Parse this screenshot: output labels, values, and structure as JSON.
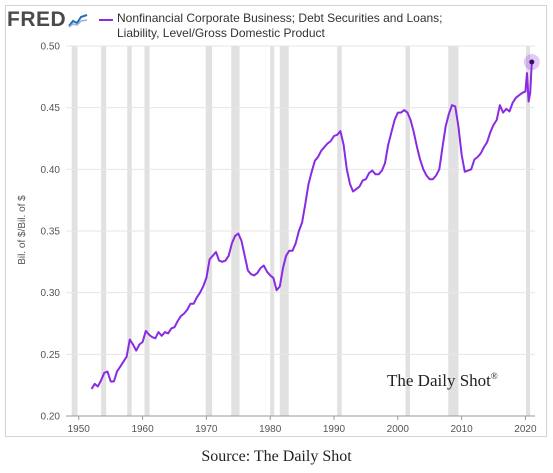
{
  "header": {
    "logo_text": "FRED",
    "legend_label": "Nonfinancial Corporate Business; Debt Securities and Loans; Liability, Level/Gross Domestic Product",
    "legend_color": "#8a2be2"
  },
  "watermark": "The Daily Shot",
  "watermark_mark": "®",
  "source": "Source: The Daily Shot",
  "chart_data": {
    "type": "line",
    "title": "",
    "ylabel": "Bil. of $/Bil. of $",
    "xlabel": "",
    "xlim": [
      1948.0,
      2021.5
    ],
    "ylim": [
      0.2,
      0.5
    ],
    "x_ticks": [
      1950,
      1960,
      1970,
      1980,
      1990,
      2000,
      2010,
      2020
    ],
    "y_ticks": [
      0.2,
      0.25,
      0.3,
      0.35,
      0.4,
      0.45,
      0.5
    ],
    "y_tick_labels": [
      "0.20",
      "0.25",
      "0.30",
      "0.35",
      "0.40",
      "0.45",
      "0.50"
    ],
    "grid": "horizontal",
    "line_color": "#8a2be2",
    "recessions": [
      [
        1948.9,
        1949.8
      ],
      [
        1953.5,
        1954.3
      ],
      [
        1957.6,
        1958.3
      ],
      [
        1960.3,
        1961.1
      ],
      [
        1969.9,
        1970.9
      ],
      [
        1973.9,
        1975.2
      ],
      [
        1980.0,
        1980.5
      ],
      [
        1981.5,
        1982.9
      ],
      [
        1990.5,
        1991.2
      ],
      [
        2001.2,
        2001.9
      ],
      [
        2007.9,
        2009.5
      ],
      [
        2020.1,
        2020.5
      ]
    ],
    "series": [
      {
        "x": [
          1952.0,
          1952.5,
          1953.0,
          1953.5,
          1954.0,
          1954.5,
          1955.0,
          1955.5,
          1956.0,
          1956.5,
          1957.0,
          1957.5,
          1958.0,
          1958.5,
          1959.0,
          1959.5,
          1960.0,
          1960.5,
          1961.0,
          1961.5,
          1962.0,
          1962.5,
          1963.0,
          1963.5,
          1964.0,
          1964.5,
          1965.0,
          1965.5,
          1966.0,
          1966.5,
          1967.0,
          1967.5,
          1968.0,
          1968.5,
          1969.0,
          1969.5,
          1970.0,
          1970.5,
          1971.0,
          1971.5,
          1972.0,
          1972.5,
          1973.0,
          1973.5,
          1974.0,
          1974.5,
          1975.0,
          1975.5,
          1976.0,
          1976.5,
          1977.0,
          1977.5,
          1978.0,
          1978.5,
          1979.0,
          1979.5,
          1980.0,
          1980.5,
          1981.0,
          1981.5,
          1982.0,
          1982.5,
          1983.0,
          1983.5,
          1984.0,
          1984.5,
          1985.0,
          1985.5,
          1986.0,
          1986.5,
          1987.0,
          1987.5,
          1988.0,
          1988.5,
          1989.0,
          1989.5,
          1990.0,
          1990.5,
          1991.0,
          1991.5,
          1992.0,
          1992.5,
          1993.0,
          1993.5,
          1994.0,
          1994.5,
          1995.0,
          1995.5,
          1996.0,
          1996.5,
          1997.0,
          1997.5,
          1998.0,
          1998.5,
          1999.0,
          1999.5,
          2000.0,
          2000.5,
          2001.0,
          2001.5,
          2002.0,
          2002.5,
          2003.0,
          2003.5,
          2004.0,
          2004.5,
          2005.0,
          2005.5,
          2006.0,
          2006.5,
          2007.0,
          2007.5,
          2008.0,
          2008.5,
          2009.0,
          2009.5,
          2010.0,
          2010.5,
          2011.0,
          2011.5,
          2012.0,
          2012.5,
          2013.0,
          2013.5,
          2014.0,
          2014.5,
          2015.0,
          2015.5,
          2016.0,
          2016.5,
          2017.0,
          2017.5,
          2018.0,
          2018.5,
          2019.0,
          2019.5,
          2020.0,
          2020.25,
          2020.5,
          2020.75,
          2021.0
        ],
        "values": [
          0.222,
          0.226,
          0.224,
          0.229,
          0.235,
          0.236,
          0.228,
          0.228,
          0.236,
          0.24,
          0.244,
          0.248,
          0.262,
          0.258,
          0.253,
          0.258,
          0.26,
          0.269,
          0.266,
          0.264,
          0.263,
          0.268,
          0.265,
          0.268,
          0.267,
          0.271,
          0.272,
          0.277,
          0.281,
          0.283,
          0.286,
          0.291,
          0.291,
          0.296,
          0.3,
          0.305,
          0.312,
          0.327,
          0.33,
          0.333,
          0.326,
          0.325,
          0.326,
          0.33,
          0.34,
          0.346,
          0.348,
          0.342,
          0.33,
          0.318,
          0.315,
          0.314,
          0.316,
          0.32,
          0.322,
          0.317,
          0.314,
          0.312,
          0.302,
          0.305,
          0.32,
          0.33,
          0.334,
          0.334,
          0.34,
          0.35,
          0.357,
          0.372,
          0.388,
          0.398,
          0.407,
          0.41,
          0.415,
          0.418,
          0.421,
          0.423,
          0.427,
          0.428,
          0.431,
          0.42,
          0.4,
          0.388,
          0.382,
          0.384,
          0.386,
          0.391,
          0.392,
          0.397,
          0.399,
          0.396,
          0.396,
          0.399,
          0.405,
          0.42,
          0.43,
          0.44,
          0.446,
          0.446,
          0.448,
          0.446,
          0.44,
          0.43,
          0.418,
          0.408,
          0.4,
          0.395,
          0.392,
          0.392,
          0.395,
          0.4,
          0.418,
          0.435,
          0.445,
          0.452,
          0.451,
          0.435,
          0.412,
          0.398,
          0.399,
          0.4,
          0.408,
          0.41,
          0.413,
          0.418,
          0.422,
          0.43,
          0.436,
          0.44,
          0.452,
          0.446,
          0.449,
          0.447,
          0.454,
          0.458,
          0.46,
          0.462,
          0.463,
          0.478,
          0.455,
          0.462,
          0.487
        ],
        "last_point_highlighted": true
      }
    ]
  }
}
